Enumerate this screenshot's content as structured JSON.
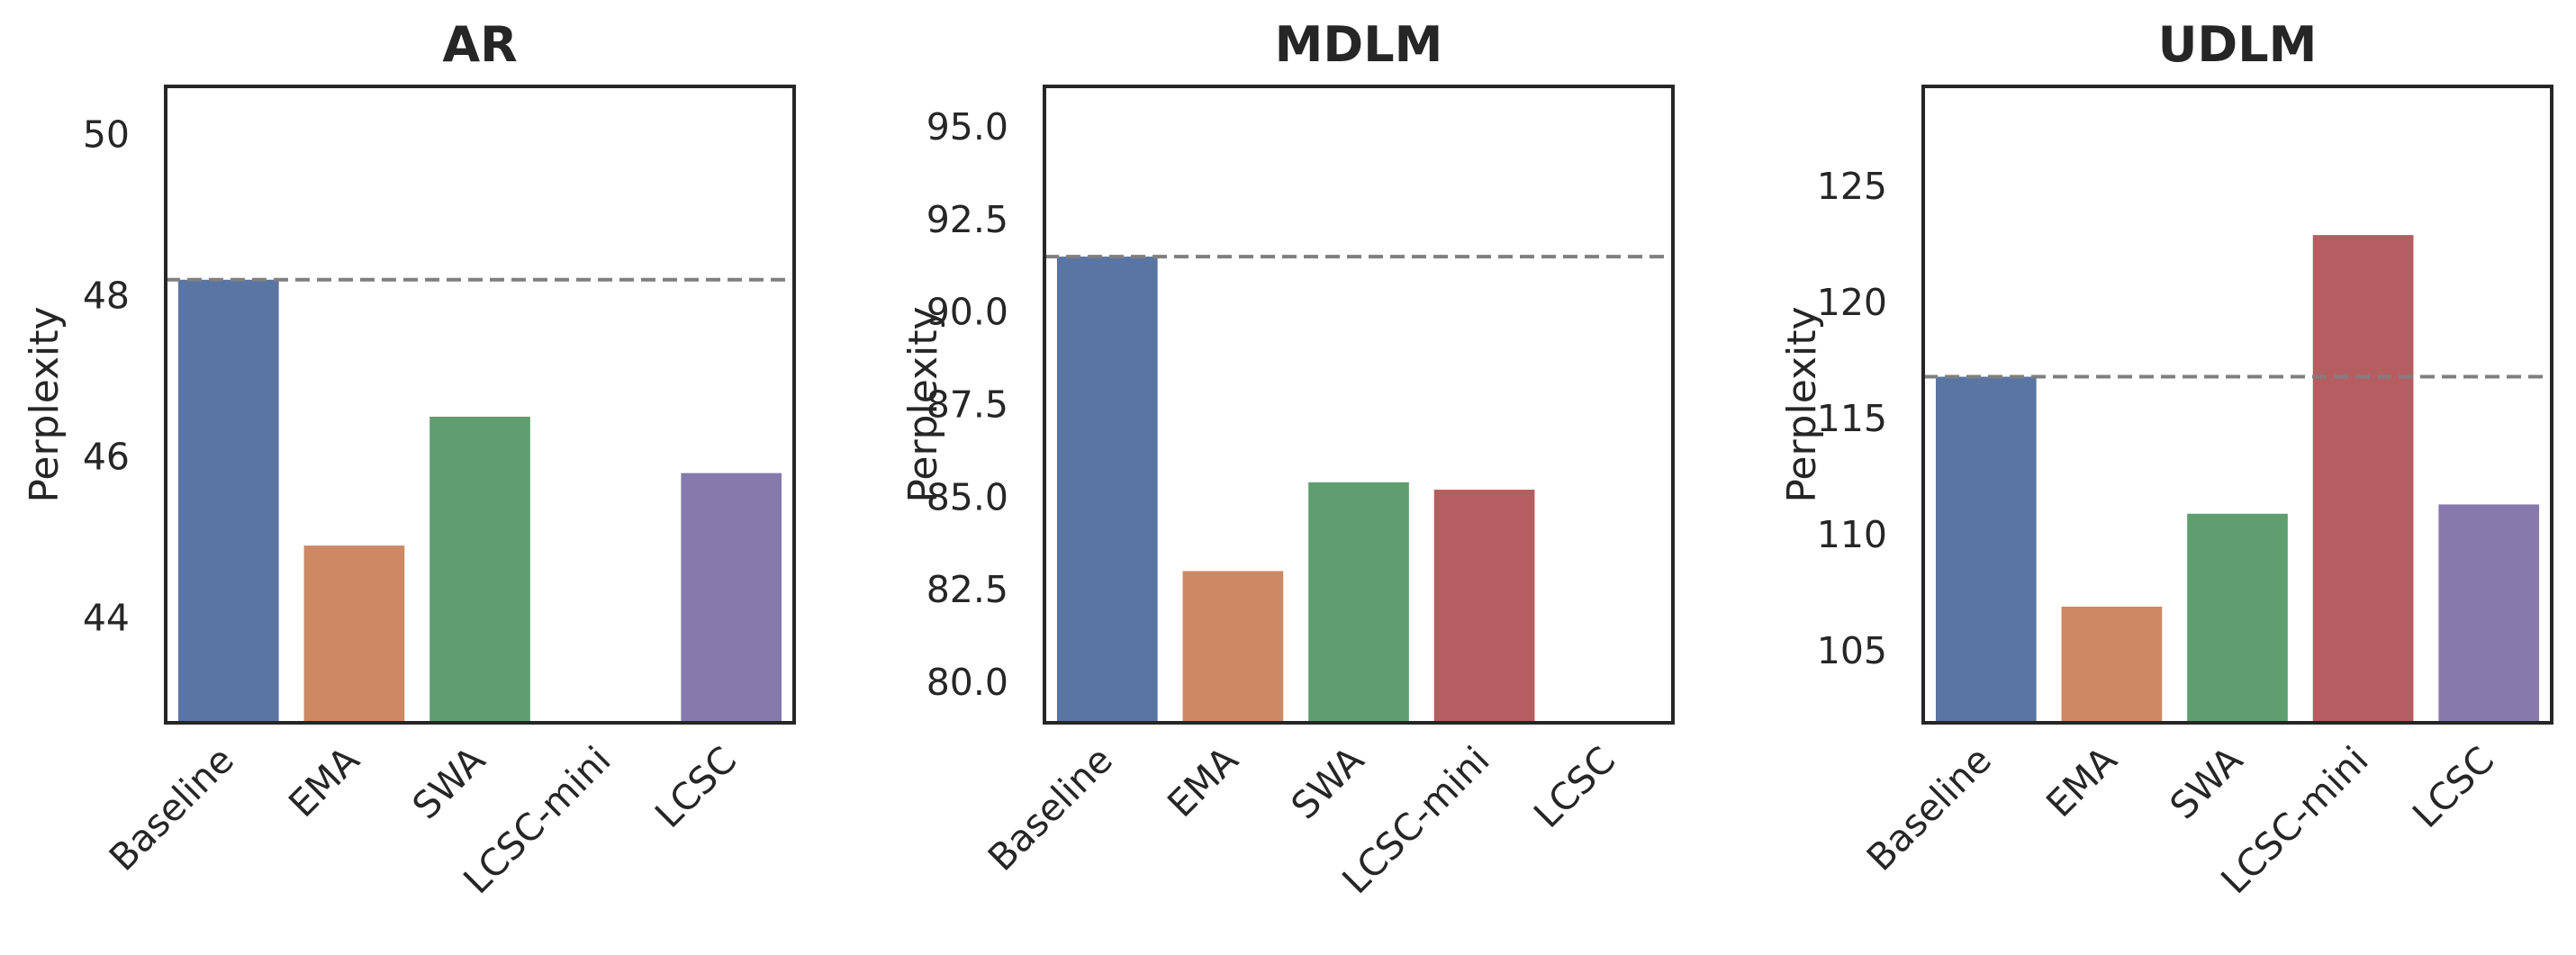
{
  "chart_data": [
    {
      "type": "bar",
      "title": "AR",
      "xlabel": "",
      "ylabel": "Perplexity",
      "categories": [
        "Baseline",
        "EMA",
        "SWA",
        "LCSC-mini",
        "LCSC"
      ],
      "values": [
        48.2,
        44.9,
        46.5,
        null,
        45.8
      ],
      "colors": [
        "#5875a4",
        "#cc8963",
        "#5f9e6e",
        "#b55d60",
        "#857aab"
      ],
      "ylim": [
        42.7,
        50.6
      ],
      "yticks": [
        "44",
        "46",
        "48",
        "50"
      ],
      "ytick_values": [
        44,
        46,
        48,
        50
      ],
      "reference_line": 48.2,
      "grid": false
    },
    {
      "type": "bar",
      "title": "MDLM",
      "xlabel": "",
      "ylabel": "Perplexity",
      "categories": [
        "Baseline",
        "EMA",
        "SWA",
        "LCSC-mini",
        "LCSC"
      ],
      "values": [
        91.5,
        83.0,
        85.4,
        85.2,
        null
      ],
      "colors": [
        "#5875a4",
        "#cc8963",
        "#5f9e6e",
        "#b55d60",
        "#857aab"
      ],
      "ylim": [
        78.9,
        96.1
      ],
      "yticks": [
        "80.0",
        "82.5",
        "85.0",
        "87.5",
        "90.0",
        "92.5",
        "95.0"
      ],
      "ytick_values": [
        80.0,
        82.5,
        85.0,
        87.5,
        90.0,
        92.5,
        95.0
      ],
      "reference_line": 91.5,
      "grid": false
    },
    {
      "type": "bar",
      "title": "UDLM",
      "xlabel": "",
      "ylabel": "Perplexity",
      "categories": [
        "Baseline",
        "EMA",
        "SWA",
        "LCSC-mini",
        "LCSC"
      ],
      "values": [
        116.8,
        106.9,
        110.9,
        122.9,
        111.3
      ],
      "colors": [
        "#5875a4",
        "#cc8963",
        "#5f9e6e",
        "#b55d60",
        "#857aab"
      ],
      "ylim": [
        101.9,
        129.3
      ],
      "yticks": [
        "105",
        "110",
        "115",
        "120",
        "125"
      ],
      "ytick_values": [
        105,
        110,
        115,
        120,
        125
      ],
      "reference_line": 116.8,
      "grid": false
    }
  ]
}
